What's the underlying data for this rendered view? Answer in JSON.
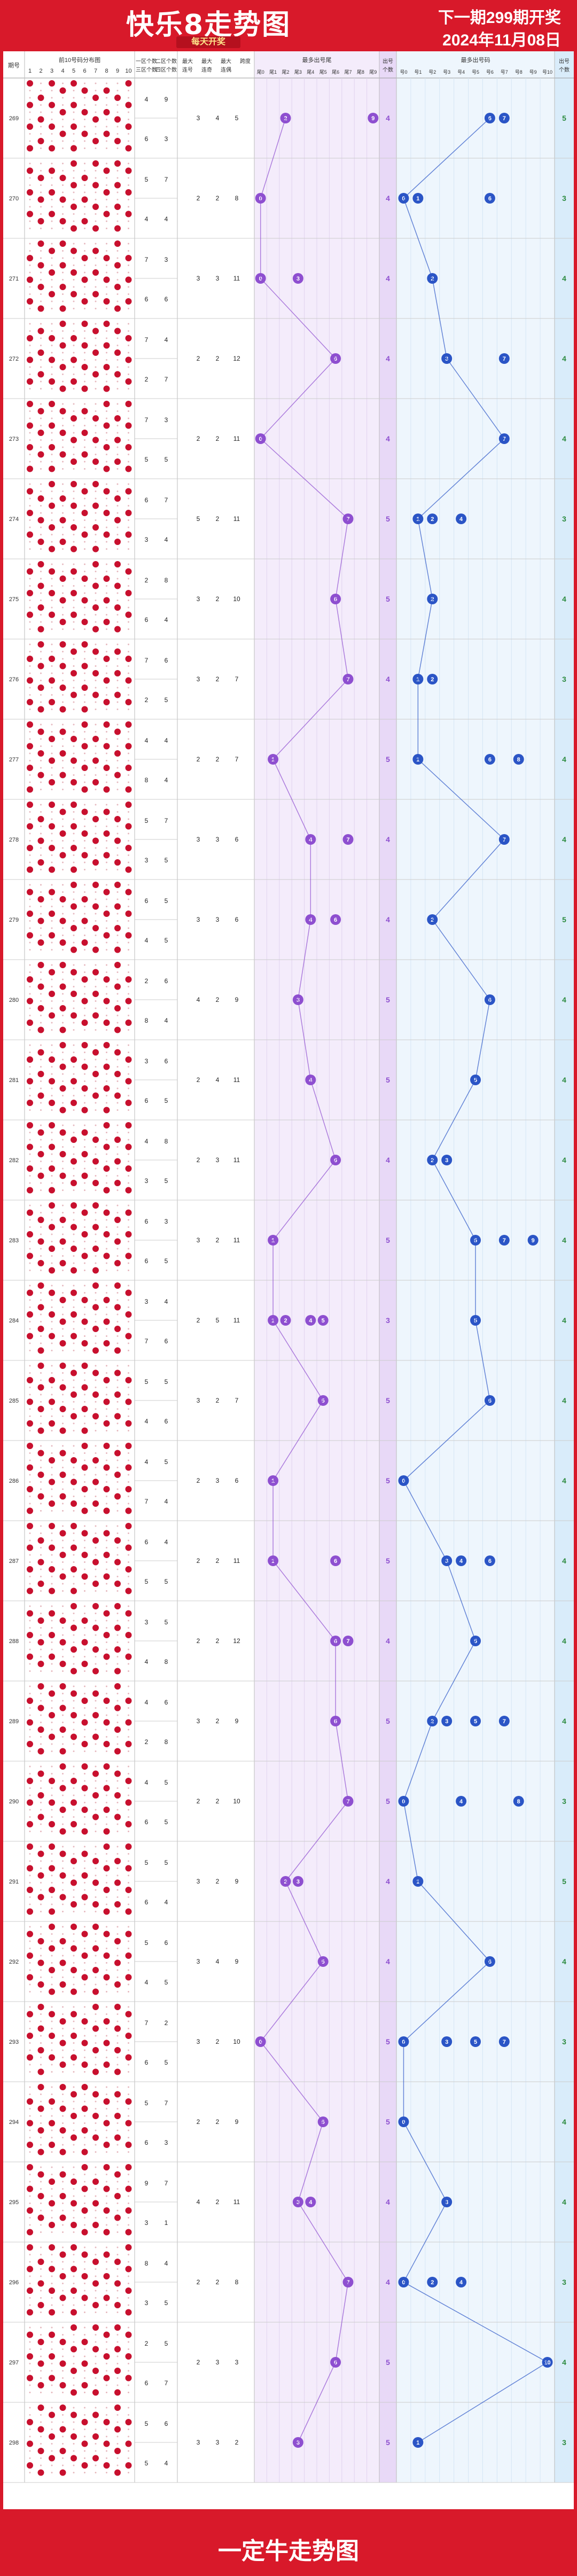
{
  "header": {
    "title": "快乐8走势图",
    "subtitle": "每天开奖",
    "next_issue": "下一期299期开奖",
    "date": "2024年11月08日"
  },
  "footer": {
    "title": "一定牛走势图"
  },
  "columns": {
    "issue": "期号",
    "dist": "前10号码分布图",
    "dist_nums": [
      "1",
      "2",
      "3",
      "4",
      "5",
      "6",
      "7",
      "8",
      "9",
      "10"
    ],
    "zone": [
      "一区个数",
      "三区个数",
      "二区个数",
      "四区个数"
    ],
    "big_count": "最大连号",
    "max_odd": "最大连奇",
    "max_even": "最大连偶",
    "span": "跨度",
    "tail_head": "最多出号尾",
    "out_count": "出号个数",
    "tails": [
      "尾0",
      "尾1",
      "尾2",
      "尾3",
      "尾4",
      "尾5",
      "尾6",
      "尾7",
      "尾8",
      "尾9"
    ],
    "nums_head": "最多出号码",
    "nums": [
      "号0",
      "号1",
      "号2",
      "号3",
      "号4",
      "号5",
      "号6",
      "号7",
      "号8",
      "号9",
      "号10"
    ],
    "nums_count": "出号个数"
  },
  "chart_data": {
    "type": "table",
    "rows": [
      {
        "issue": "269",
        "z": [
          4,
          6,
          9,
          3
        ],
        "s": [
          3,
          4,
          5
        ],
        "t": [
          2,
          9
        ],
        "tc": 4,
        "n": [
          6,
          7
        ],
        "nc": 5
      },
      {
        "issue": "270",
        "z": [
          5,
          4,
          7,
          4
        ],
        "s": [
          2,
          2,
          8
        ],
        "t": [
          0
        ],
        "tc": 4,
        "n": [
          0,
          1,
          6
        ],
        "nc": 3
      },
      {
        "issue": "271",
        "z": [
          7,
          6,
          3,
          6
        ],
        "s": [
          3,
          3,
          11
        ],
        "t": [
          0,
          3
        ],
        "tc": 4,
        "n": [
          2
        ],
        "nc": 4
      },
      {
        "issue": "272",
        "z": [
          7,
          2,
          4,
          7
        ],
        "s": [
          2,
          2,
          12
        ],
        "t": [
          6
        ],
        "tc": 4,
        "n": [
          3,
          7
        ],
        "nc": 4
      },
      {
        "issue": "273",
        "z": [
          7,
          5,
          3,
          5
        ],
        "s": [
          2,
          2,
          11
        ],
        "t": [
          0
        ],
        "tc": 4,
        "n": [
          7
        ],
        "nc": 4
      },
      {
        "issue": "274",
        "z": [
          6,
          3,
          7,
          4
        ],
        "s": [
          5,
          2,
          11
        ],
        "t": [
          7
        ],
        "tc": 5,
        "n": [
          1,
          2,
          4
        ],
        "nc": 3
      },
      {
        "issue": "275",
        "z": [
          2,
          6,
          8,
          4
        ],
        "s": [
          3,
          2,
          10
        ],
        "t": [
          6
        ],
        "tc": 5,
        "n": [
          2
        ],
        "nc": 4
      },
      {
        "issue": "276",
        "z": [
          7,
          2,
          6,
          5
        ],
        "s": [
          3,
          2,
          7
        ],
        "t": [
          7
        ],
        "tc": 4,
        "n": [
          1,
          2
        ],
        "nc": 3
      },
      {
        "issue": "277",
        "z": [
          4,
          8,
          4,
          4
        ],
        "s": [
          2,
          2,
          7
        ],
        "t": [
          1
        ],
        "tc": 5,
        "n": [
          1,
          6,
          8
        ],
        "nc": 4
      },
      {
        "issue": "278",
        "z": [
          5,
          3,
          7,
          5
        ],
        "s": [
          3,
          3,
          6
        ],
        "t": [
          4,
          7
        ],
        "tc": 4,
        "n": [
          7
        ],
        "nc": 4
      },
      {
        "issue": "279",
        "z": [
          6,
          4,
          5,
          5
        ],
        "s": [
          3,
          3,
          6
        ],
        "t": [
          4,
          6
        ],
        "tc": 4,
        "n": [
          2
        ],
        "nc": 5
      },
      {
        "issue": "280",
        "z": [
          2,
          8,
          6,
          4
        ],
        "s": [
          4,
          2,
          9
        ],
        "t": [
          3
        ],
        "tc": 5,
        "n": [
          6
        ],
        "nc": 4
      },
      {
        "issue": "281",
        "z": [
          3,
          6,
          6,
          5
        ],
        "s": [
          2,
          4,
          11
        ],
        "t": [
          4
        ],
        "tc": 5,
        "n": [
          5
        ],
        "nc": 4
      },
      {
        "issue": "282",
        "z": [
          4,
          3,
          8,
          5
        ],
        "s": [
          2,
          3,
          11
        ],
        "t": [
          6
        ],
        "tc": 4,
        "n": [
          2,
          3
        ],
        "nc": 4
      },
      {
        "issue": "283",
        "z": [
          6,
          6,
          3,
          5
        ],
        "s": [
          3,
          2,
          11
        ],
        "t": [
          1
        ],
        "tc": 5,
        "n": [
          5,
          7,
          9
        ],
        "nc": 4
      },
      {
        "issue": "284",
        "z": [
          3,
          7,
          4,
          6
        ],
        "s": [
          2,
          5,
          11
        ],
        "t": [
          1,
          2,
          4,
          5
        ],
        "tc": 3,
        "n": [
          5
        ],
        "nc": 4
      },
      {
        "issue": "285",
        "z": [
          5,
          4,
          5,
          6
        ],
        "s": [
          3,
          2,
          7
        ],
        "t": [
          5
        ],
        "tc": 5,
        "n": [
          6
        ],
        "nc": 4
      },
      {
        "issue": "286",
        "z": [
          4,
          7,
          5,
          4
        ],
        "s": [
          2,
          3,
          6
        ],
        "t": [
          1
        ],
        "tc": 5,
        "n": [
          0
        ],
        "nc": 4
      },
      {
        "issue": "287",
        "z": [
          6,
          5,
          4,
          5
        ],
        "s": [
          2,
          2,
          11
        ],
        "t": [
          1,
          6
        ],
        "tc": 5,
        "n": [
          3,
          4,
          6
        ],
        "nc": 4
      },
      {
        "issue": "288",
        "z": [
          3,
          4,
          5,
          8
        ],
        "s": [
          2,
          2,
          12
        ],
        "t": [
          6,
          7
        ],
        "tc": 4,
        "n": [
          5
        ],
        "nc": 4
      },
      {
        "issue": "289",
        "z": [
          4,
          2,
          6,
          8
        ],
        "s": [
          3,
          2,
          9
        ],
        "t": [
          6
        ],
        "tc": 5,
        "n": [
          2,
          3,
          5,
          7
        ],
        "nc": 4
      },
      {
        "issue": "290",
        "z": [
          4,
          6,
          5,
          5
        ],
        "s": [
          2,
          2,
          10
        ],
        "t": [
          7
        ],
        "tc": 5,
        "n": [
          0,
          4,
          8
        ],
        "nc": 3
      },
      {
        "issue": "291",
        "z": [
          5,
          6,
          5,
          4
        ],
        "s": [
          3,
          2,
          9
        ],
        "t": [
          2,
          3
        ],
        "tc": 4,
        "n": [
          1
        ],
        "nc": 5
      },
      {
        "issue": "292",
        "z": [
          5,
          4,
          6,
          5
        ],
        "s": [
          3,
          4,
          9
        ],
        "t": [
          5
        ],
        "tc": 4,
        "n": [
          6
        ],
        "nc": 4
      },
      {
        "issue": "293",
        "z": [
          7,
          6,
          2,
          5
        ],
        "s": [
          3,
          2,
          10
        ],
        "t": [
          0
        ],
        "tc": 5,
        "n": [
          0,
          3,
          5,
          7
        ],
        "nc": 3
      },
      {
        "issue": "294",
        "z": [
          5,
          6,
          7,
          3
        ],
        "s": [
          2,
          2,
          9
        ],
        "t": [
          5
        ],
        "tc": 5,
        "n": [
          0
        ],
        "nc": 4
      },
      {
        "issue": "295",
        "z": [
          9,
          3,
          7,
          1
        ],
        "s": [
          4,
          2,
          11
        ],
        "t": [
          3,
          4
        ],
        "tc": 4,
        "n": [
          3
        ],
        "nc": 4
      },
      {
        "issue": "296",
        "z": [
          8,
          3,
          4,
          5
        ],
        "s": [
          2,
          2,
          8
        ],
        "t": [
          7
        ],
        "tc": 4,
        "n": [
          0,
          2,
          4
        ],
        "nc": 3
      },
      {
        "issue": "297",
        "z": [
          2,
          6,
          5,
          7
        ],
        "s": [
          2,
          3,
          3
        ],
        "t": [
          6
        ],
        "tc": 5,
        "n": [
          10
        ],
        "nc": 4
      },
      {
        "issue": "298",
        "z": [
          5,
          5,
          6,
          4
        ],
        "s": [
          3,
          3,
          2
        ],
        "t": [
          3
        ],
        "tc": 5,
        "n": [
          1
        ],
        "nc": 3
      }
    ]
  }
}
